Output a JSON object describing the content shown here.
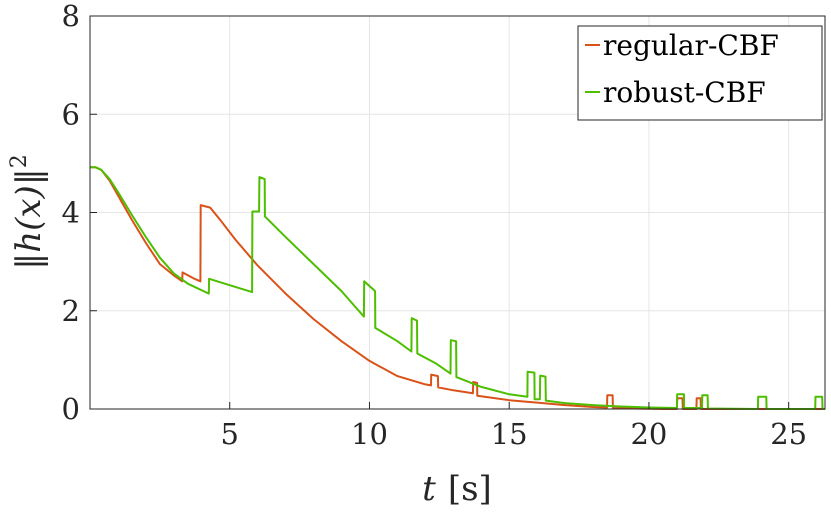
{
  "chart_data": {
    "type": "line",
    "title": "",
    "xlabel": {
      "var": "t",
      "unit": "[s]"
    },
    "ylabel": {
      "text": "‖h(x)‖",
      "exp": "2"
    },
    "xlim": [
      0,
      26.3
    ],
    "ylim": [
      0,
      8
    ],
    "xticks": [
      5,
      10,
      15,
      20,
      25
    ],
    "yticks": [
      0,
      2,
      4,
      6,
      8
    ],
    "grid": true,
    "legend": {
      "position": "top-right"
    },
    "series": [
      {
        "name": "regular-CBF",
        "color": "#D95319",
        "points": [
          [
            0,
            4.92
          ],
          [
            0.2,
            4.92
          ],
          [
            0.4,
            4.87
          ],
          [
            0.7,
            4.65
          ],
          [
            1.0,
            4.35
          ],
          [
            1.5,
            3.85
          ],
          [
            2.0,
            3.38
          ],
          [
            2.5,
            2.95
          ],
          [
            3.0,
            2.72
          ],
          [
            3.3,
            2.6
          ],
          [
            3.31,
            2.78
          ],
          [
            3.7,
            2.66
          ],
          [
            3.95,
            2.6
          ],
          [
            3.96,
            4.15
          ],
          [
            4.3,
            4.1
          ],
          [
            4.7,
            3.82
          ],
          [
            5.2,
            3.45
          ],
          [
            6.0,
            2.92
          ],
          [
            7.0,
            2.35
          ],
          [
            8.0,
            1.83
          ],
          [
            9.0,
            1.38
          ],
          [
            10.0,
            0.98
          ],
          [
            11.0,
            0.67
          ],
          [
            12.0,
            0.5
          ],
          [
            12.2,
            0.48
          ],
          [
            12.21,
            0.7
          ],
          [
            12.45,
            0.67
          ],
          [
            12.46,
            0.44
          ],
          [
            13.0,
            0.38
          ],
          [
            13.7,
            0.32
          ],
          [
            13.71,
            0.55
          ],
          [
            13.85,
            0.53
          ],
          [
            13.86,
            0.27
          ],
          [
            15.0,
            0.18
          ],
          [
            16.0,
            0.13
          ],
          [
            17.0,
            0.08
          ],
          [
            18.0,
            0.04
          ],
          [
            18.5,
            0.03
          ],
          [
            18.51,
            0.28
          ],
          [
            18.7,
            0.28
          ],
          [
            18.71,
            0.02
          ],
          [
            19.5,
            0.01
          ],
          [
            20.5,
            0.0
          ],
          [
            21.0,
            0.0
          ],
          [
            21.01,
            0.22
          ],
          [
            21.2,
            0.22
          ],
          [
            21.21,
            0.0
          ],
          [
            21.7,
            0.0
          ],
          [
            21.71,
            0.22
          ],
          [
            21.85,
            0.22
          ],
          [
            21.86,
            0.0
          ],
          [
            26.3,
            0.0
          ]
        ]
      },
      {
        "name": "robust-CBF",
        "color": "#4DBE00",
        "points": [
          [
            0,
            4.92
          ],
          [
            0.2,
            4.92
          ],
          [
            0.4,
            4.87
          ],
          [
            0.7,
            4.68
          ],
          [
            1.0,
            4.42
          ],
          [
            1.5,
            3.95
          ],
          [
            2.0,
            3.5
          ],
          [
            2.5,
            3.08
          ],
          [
            3.0,
            2.76
          ],
          [
            3.5,
            2.55
          ],
          [
            4.25,
            2.35
          ],
          [
            4.26,
            2.65
          ],
          [
            5.0,
            2.52
          ],
          [
            5.8,
            2.38
          ],
          [
            5.81,
            4.02
          ],
          [
            6.05,
            4.02
          ],
          [
            6.06,
            4.72
          ],
          [
            6.25,
            4.68
          ],
          [
            6.26,
            3.92
          ],
          [
            7.0,
            3.5
          ],
          [
            8.0,
            2.95
          ],
          [
            9.0,
            2.4
          ],
          [
            9.8,
            1.88
          ],
          [
            9.81,
            2.6
          ],
          [
            10.2,
            2.4
          ],
          [
            10.21,
            1.65
          ],
          [
            11.0,
            1.38
          ],
          [
            11.5,
            1.17
          ],
          [
            11.51,
            1.85
          ],
          [
            11.7,
            1.8
          ],
          [
            11.71,
            1.13
          ],
          [
            12.4,
            0.92
          ],
          [
            12.9,
            0.72
          ],
          [
            12.91,
            1.4
          ],
          [
            13.1,
            1.38
          ],
          [
            13.11,
            0.65
          ],
          [
            14.0,
            0.45
          ],
          [
            15.0,
            0.3
          ],
          [
            15.65,
            0.25
          ],
          [
            15.66,
            0.76
          ],
          [
            15.9,
            0.74
          ],
          [
            15.91,
            0.2
          ],
          [
            16.1,
            0.2
          ],
          [
            16.11,
            0.68
          ],
          [
            16.3,
            0.66
          ],
          [
            16.31,
            0.17
          ],
          [
            17.0,
            0.12
          ],
          [
            18.0,
            0.08
          ],
          [
            19.0,
            0.05
          ],
          [
            20.0,
            0.03
          ],
          [
            21.0,
            0.02
          ],
          [
            21.01,
            0.3
          ],
          [
            21.25,
            0.3
          ],
          [
            21.26,
            0.02
          ],
          [
            21.9,
            0.02
          ],
          [
            21.91,
            0.28
          ],
          [
            22.1,
            0.28
          ],
          [
            22.11,
            0.01
          ],
          [
            23.9,
            0.0
          ],
          [
            23.91,
            0.25
          ],
          [
            24.2,
            0.25
          ],
          [
            24.21,
            0.0
          ],
          [
            25.95,
            0.0
          ],
          [
            25.96,
            0.25
          ],
          [
            26.2,
            0.25
          ],
          [
            26.21,
            0.0
          ],
          [
            26.3,
            0.0
          ]
        ]
      }
    ]
  }
}
